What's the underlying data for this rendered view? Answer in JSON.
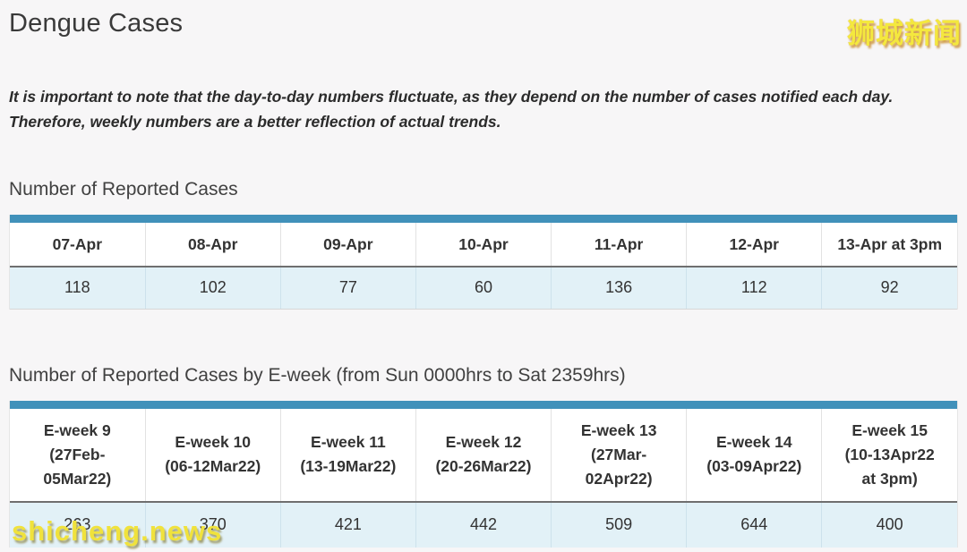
{
  "header": {
    "title": "Dengue Cases",
    "note": "It is important to note that the day-to-day numbers fluctuate, as they depend on the number of cases notified each day.\nTherefore, weekly numbers are a better reflection of actual trends."
  },
  "watermarks": {
    "top_right": "狮城新闻",
    "bottom_left": "shicheng.news"
  },
  "colors": {
    "accent_bar_blue": "#4191BA",
    "data_row_bg": "#E2F1F7",
    "watermark_yellow": "#F2E33C",
    "page_bg": "#F7F6F7"
  },
  "daily_table": {
    "heading": "Number of Reported Cases",
    "columns": [
      "07-Apr",
      "08-Apr",
      "09-Apr",
      "10-Apr",
      "11-Apr",
      "12-Apr",
      "13-Apr at 3pm"
    ],
    "values": [
      "118",
      "102",
      "77",
      "60",
      "136",
      "112",
      "92"
    ]
  },
  "weekly_table": {
    "heading": "Number of Reported Cases by E-week (from Sun 0000hrs to Sat 2359hrs)",
    "columns": [
      "E-week 9\n(27Feb-\n05Mar22)",
      "E-week 10\n(06-12Mar22)",
      "E-week 11\n(13-19Mar22)",
      "E-week 12\n(20-26Mar22)",
      "E-week 13\n(27Mar-\n02Apr22)",
      "E-week 14\n(03-09Apr22)",
      "E-week 15\n(10-13Apr22\nat 3pm)"
    ],
    "values": [
      "263",
      "370",
      "421",
      "442",
      "509",
      "644",
      "400"
    ]
  }
}
